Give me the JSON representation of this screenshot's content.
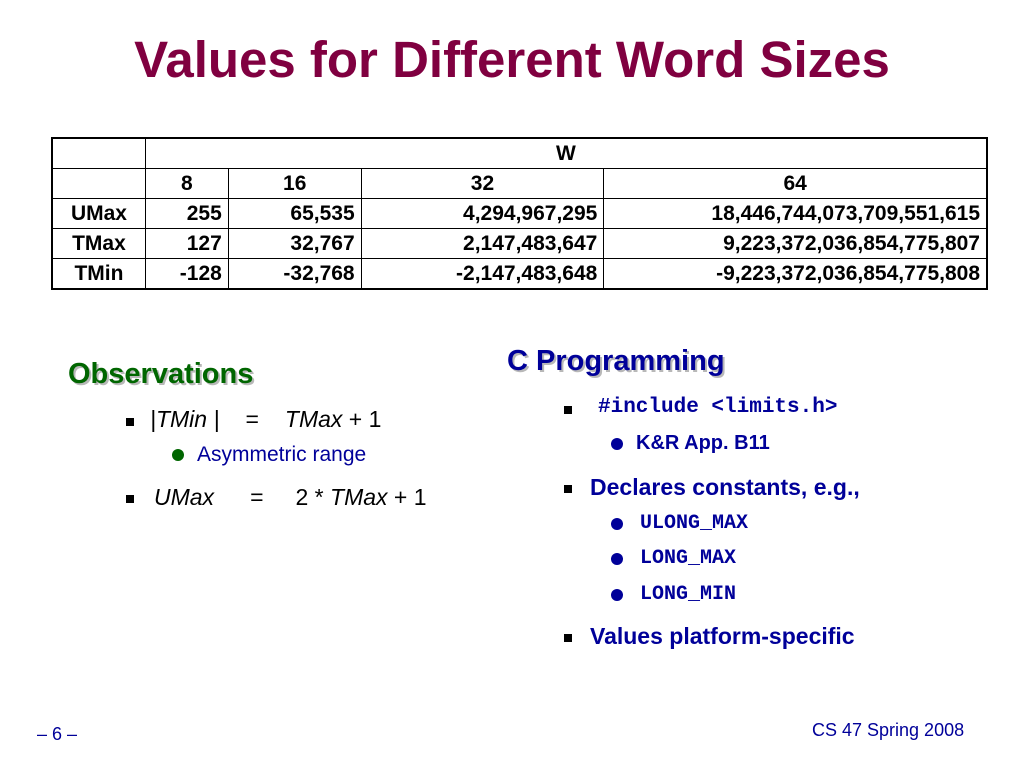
{
  "title": "Values for Different Word Sizes",
  "table": {
    "group_header": "W",
    "widths": [
      "8",
      "16",
      "32",
      "64"
    ],
    "rows": [
      {
        "label": "UMax",
        "values": [
          "255",
          "65,535",
          "4,294,967,295",
          "18,446,744,073,709,551,615"
        ]
      },
      {
        "label": "TMax",
        "values": [
          "127",
          "32,767",
          "2,147,483,647",
          "9,223,372,036,854,775,807"
        ]
      },
      {
        "label": "TMin",
        "values": [
          "-128",
          "-32,768",
          "-2,147,483,648",
          "-9,223,372,036,854,775,808"
        ]
      }
    ]
  },
  "observations": {
    "heading": "Observations",
    "item1": {
      "lhs": "|TMin |",
      "eq": "=",
      "rhs_var": "TMax",
      "rhs_tail": " + 1"
    },
    "item1_sub": "Asymmetric range",
    "item2": {
      "lhs": "UMax",
      "eq": "=",
      "rhs_head": "2 * ",
      "rhs_var": "TMax",
      "rhs_tail": " + 1"
    }
  },
  "c_programming": {
    "heading": "C Programming",
    "include": "#include <limits.h>",
    "include_sub": "K&R App. B11",
    "declares": "Declares constants, e.g.,",
    "constants": [
      "ULONG_MAX",
      "LONG_MAX",
      "LONG_MIN"
    ],
    "platform": "Values platform-specific"
  },
  "footer": {
    "page": "– 6 –",
    "course": "CS 47 Spring 2008"
  },
  "colors": {
    "title": "#800040",
    "observations_heading": "#006600",
    "c_heading": "#000099",
    "text_blue": "#000099"
  }
}
